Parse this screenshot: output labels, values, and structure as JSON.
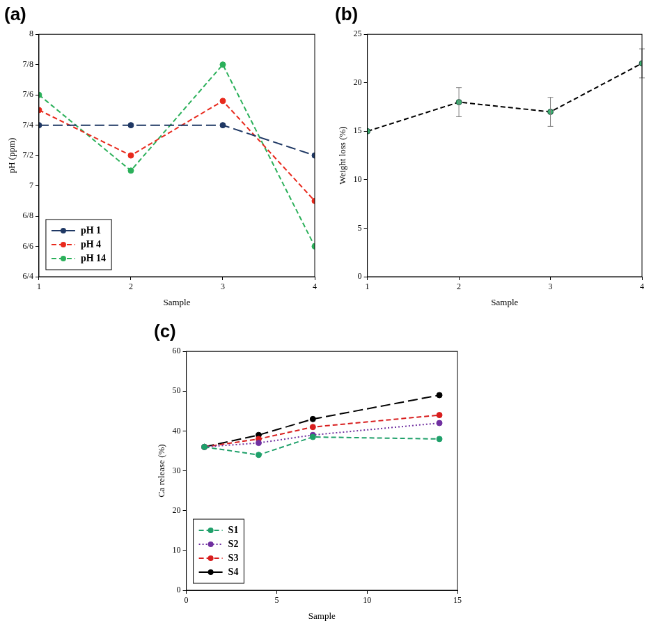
{
  "chart_data": [
    {
      "type": "line",
      "title": "(a)",
      "x_label": "Sample",
      "y_label": "pH (ppm)",
      "x": [
        1,
        2,
        3,
        4
      ],
      "xlim": [
        1,
        4
      ],
      "xticks": [
        1,
        2,
        3,
        4
      ],
      "ylim": [
        6.4,
        8
      ],
      "yticks": [
        {
          "value": 6.4,
          "label": "6/4"
        },
        {
          "value": 6.6,
          "label": "6/6"
        },
        {
          "value": 6.8,
          "label": "6/8"
        },
        7,
        {
          "value": 7.2,
          "label": "7/2"
        },
        {
          "value": 7.4,
          "label": "7/4"
        },
        {
          "value": 7.6,
          "label": "7/6"
        },
        {
          "value": 7.8,
          "label": "7/8"
        },
        8
      ],
      "grid": false,
      "legend": "lower left",
      "series": [
        {
          "name": "pH 1",
          "color": "#1f3864",
          "line_style": "long-dashed",
          "marker": "circle",
          "values": [
            7.4,
            7.4,
            7.4,
            7.2
          ]
        },
        {
          "name": "pH 4",
          "color": "#e8291c",
          "line_style": "dashed",
          "marker": "circle",
          "values": [
            7.5,
            7.2,
            7.56,
            6.9
          ]
        },
        {
          "name": "pH 14",
          "color": "#2bb05a",
          "line_style": "dashed",
          "marker": "circle",
          "values": [
            7.6,
            7.1,
            7.8,
            6.6
          ]
        }
      ]
    },
    {
      "type": "line",
      "title": "(b)",
      "x_label": "Sample",
      "y_label": "Weight loss (%)",
      "x": [
        1,
        2,
        3,
        4
      ],
      "xlim": [
        1,
        4
      ],
      "xticks": [
        1,
        2,
        3,
        4
      ],
      "ylim": [
        0,
        25
      ],
      "yticks": [
        0,
        5,
        10,
        15,
        20,
        25
      ],
      "grid": false,
      "color": "#000000",
      "line_style": "dashed",
      "marker": "circle",
      "values": [
        15,
        18,
        17,
        22
      ],
      "errors": [
        0,
        1.5,
        1.5,
        1.5
      ]
    },
    {
      "type": "line",
      "title": "(c)",
      "x_label": "Sample",
      "y_label": "Ca release (%)",
      "x": [
        1,
        4,
        7,
        14
      ],
      "xlim": [
        0,
        15
      ],
      "xticks": [
        0,
        5,
        10,
        15
      ],
      "ylim": [
        0,
        60
      ],
      "yticks": [
        0,
        10,
        20,
        30,
        40,
        50,
        60
      ],
      "grid": false,
      "legend": "lower left",
      "series": [
        {
          "name": "S1",
          "color": "#1fa06a",
          "line_style": "dashed",
          "marker": "circle",
          "values": [
            36,
            34,
            38.5,
            38
          ]
        },
        {
          "name": "S2",
          "color": "#7030a0",
          "line_style": "dotted",
          "marker": "circle",
          "values": [
            36,
            37,
            39,
            42
          ]
        },
        {
          "name": "S3",
          "color": "#d81e1e",
          "line_style": "dashed",
          "marker": "circle",
          "values": [
            36,
            38,
            41,
            44
          ]
        },
        {
          "name": "S4",
          "color": "#000000",
          "line_style": "long-dashed",
          "marker": "circle",
          "values": [
            36,
            39,
            43,
            49
          ]
        }
      ]
    }
  ]
}
